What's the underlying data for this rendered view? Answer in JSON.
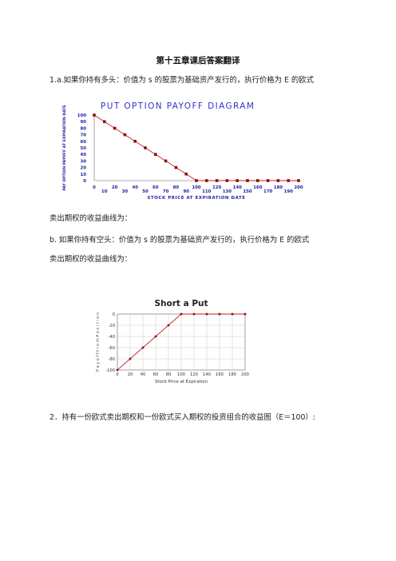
{
  "header_mark": "",
  "footer_mark": "",
  "title": "第十五章课后答案翻译",
  "p1": "1.a.如果你持有多头：价值为 s 的股票为基础资产发行的，执行价格为 E 的欧式",
  "p2": "卖出期权的收益曲线为：",
  "p3": "b. 如果你持有空头：价值为 s 的股票为基础资产发行的，执行价格为 E 的欧式",
  "p4": "卖出期权的收益曲线为：",
  "p5": "2．持有一份欧式卖出期权和一份欧式买入期权的投资组合的收益图（E＝100）:",
  "colors": {
    "chart1_title": "#3333cc",
    "chart1_axis_text": "#2222aa",
    "line": "#cc2222",
    "marker": "#881111",
    "grid": "#c8c8c8"
  },
  "chart_data": [
    {
      "type": "line",
      "title": "PUT OPTION PAYOFF DIAGRAM",
      "xlabel": "STOCK PRICE AT EXPIRATION DATE",
      "ylabel": "PAY OPTION PAYOFF AT EXPIRATION DATE",
      "xlim": [
        0,
        200
      ],
      "ylim": [
        0,
        100
      ],
      "x_ticks_upper": [
        "0",
        "20",
        "40",
        "60",
        "80",
        "100",
        "120",
        "140",
        "160",
        "180",
        "200"
      ],
      "x_ticks_lower": [
        "10",
        "30",
        "50",
        "70",
        "90",
        "110",
        "130",
        "150",
        "170",
        "190"
      ],
      "y_ticks": [
        "100",
        "90",
        "80",
        "70",
        "60",
        "50",
        "40",
        "30",
        "20",
        "10",
        "0"
      ],
      "x": [
        0,
        10,
        20,
        30,
        40,
        50,
        60,
        70,
        80,
        90,
        100,
        110,
        120,
        130,
        140,
        150,
        160,
        170,
        180,
        190,
        200
      ],
      "y": [
        100,
        90,
        80,
        70,
        60,
        50,
        40,
        30,
        20,
        10,
        0,
        0,
        0,
        0,
        0,
        0,
        0,
        0,
        0,
        0,
        0
      ],
      "grid": false
    },
    {
      "type": "line",
      "title": "Short a Put",
      "xlabel": "Stock Price at Expiration",
      "ylabel": "P a y o f f  f r o m  P o s i t i o n",
      "xlim": [
        0,
        200
      ],
      "ylim": [
        -100,
        0
      ],
      "x_ticks": [
        "0",
        "20",
        "40",
        "60",
        "80",
        "100",
        "120",
        "140",
        "160",
        "180",
        "200"
      ],
      "y_ticks": [
        "0",
        "-20",
        "-40",
        "-60",
        "-80",
        "-100"
      ],
      "x": [
        0,
        20,
        40,
        60,
        80,
        100,
        120,
        140,
        160,
        180,
        200
      ],
      "y": [
        -100,
        -80,
        -60,
        -40,
        -20,
        0,
        0,
        0,
        0,
        0,
        0
      ],
      "grid": true
    }
  ]
}
